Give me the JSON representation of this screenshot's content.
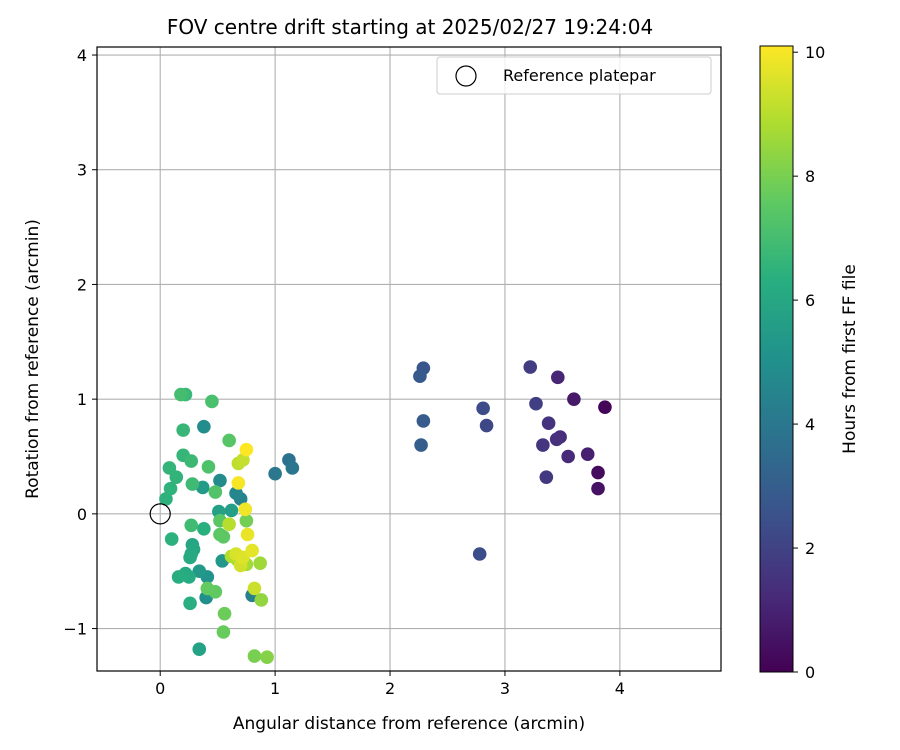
{
  "chart_data": {
    "type": "scatter",
    "title": "FOV centre drift starting at 2025/02/27 19:24:04",
    "xlabel": "Angular distance from reference (arcmin)",
    "ylabel": "Rotation from reference (arcmin)",
    "xlim": [
      -0.55,
      4.88
    ],
    "ylim": [
      -1.37,
      4.07
    ],
    "x_ticks": [
      0,
      1,
      2,
      3,
      4
    ],
    "y_ticks": [
      -1,
      0,
      1,
      2,
      3,
      4
    ],
    "x_tick_labels": [
      "0",
      "1",
      "2",
      "3",
      "4"
    ],
    "y_tick_labels": [
      "−1",
      "0",
      "1",
      "2",
      "3",
      "4"
    ],
    "grid": true,
    "legend": {
      "position": "top-right",
      "label": "Reference platepar"
    },
    "reference_point": {
      "x": 0,
      "y": 0
    },
    "colormap": "viridis",
    "colorbar": {
      "label": "Hours from first FF file",
      "range": [
        0,
        10.1
      ],
      "ticks": [
        0,
        2,
        4,
        6,
        8,
        10
      ],
      "tick_labels": [
        "0",
        "2",
        "4",
        "6",
        "8",
        "10"
      ]
    },
    "points": [
      {
        "x": 3.87,
        "y": 0.93,
        "c": 0.1
      },
      {
        "x": 3.81,
        "y": 0.36,
        "c": 0.3
      },
      {
        "x": 3.81,
        "y": 0.22,
        "c": 0.5
      },
      {
        "x": 3.6,
        "y": 1.0,
        "c": 0.7
      },
      {
        "x": 3.72,
        "y": 0.52,
        "c": 0.9
      },
      {
        "x": 3.46,
        "y": 1.19,
        "c": 1.1
      },
      {
        "x": 3.55,
        "y": 0.5,
        "c": 1.2
      },
      {
        "x": 3.48,
        "y": 0.67,
        "c": 1.3
      },
      {
        "x": 3.45,
        "y": 0.65,
        "c": 1.4
      },
      {
        "x": 3.38,
        "y": 0.79,
        "c": 1.5
      },
      {
        "x": 3.33,
        "y": 0.6,
        "c": 1.6
      },
      {
        "x": 3.36,
        "y": 0.32,
        "c": 1.7
      },
      {
        "x": 3.22,
        "y": 1.28,
        "c": 1.8
      },
      {
        "x": 3.27,
        "y": 0.96,
        "c": 1.9
      },
      {
        "x": 2.84,
        "y": 0.77,
        "c": 2.2
      },
      {
        "x": 2.81,
        "y": 0.92,
        "c": 2.3
      },
      {
        "x": 2.78,
        "y": -0.35,
        "c": 2.4
      },
      {
        "x": 2.29,
        "y": 1.27,
        "c": 2.7
      },
      {
        "x": 2.26,
        "y": 1.2,
        "c": 2.8
      },
      {
        "x": 2.29,
        "y": 0.81,
        "c": 2.9
      },
      {
        "x": 2.27,
        "y": 0.6,
        "c": 3.0
      },
      {
        "x": 1.12,
        "y": 0.47,
        "c": 3.8
      },
      {
        "x": 1.15,
        "y": 0.4,
        "c": 3.9
      },
      {
        "x": 1.0,
        "y": 0.35,
        "c": 4.0
      },
      {
        "x": 0.8,
        "y": -0.71,
        "c": 4.3
      },
      {
        "x": 0.7,
        "y": 0.13,
        "c": 4.5
      },
      {
        "x": 0.66,
        "y": 0.18,
        "c": 4.6
      },
      {
        "x": 0.52,
        "y": 0.29,
        "c": 4.8
      },
      {
        "x": 0.38,
        "y": 0.76,
        "c": 4.9
      },
      {
        "x": 0.4,
        "y": -0.73,
        "c": 5.0
      },
      {
        "x": 0.43,
        "y": -0.68,
        "c": 5.1
      },
      {
        "x": 0.41,
        "y": -0.55,
        "c": 5.2
      },
      {
        "x": 0.54,
        "y": -0.41,
        "c": 5.3
      },
      {
        "x": 0.34,
        "y": -0.5,
        "c": 5.4
      },
      {
        "x": 0.37,
        "y": 0.23,
        "c": 5.5
      },
      {
        "x": 0.62,
        "y": 0.03,
        "c": 5.6
      },
      {
        "x": 0.51,
        "y": 0.02,
        "c": 5.7
      },
      {
        "x": 0.34,
        "y": -1.18,
        "c": 5.8
      },
      {
        "x": 0.28,
        "y": -0.27,
        "c": 5.9
      },
      {
        "x": 0.29,
        "y": -0.31,
        "c": 6.0
      },
      {
        "x": 0.27,
        "y": -0.35,
        "c": 6.05
      },
      {
        "x": 0.26,
        "y": -0.38,
        "c": 6.1
      },
      {
        "x": 0.22,
        "y": -0.52,
        "c": 6.15
      },
      {
        "x": 0.25,
        "y": -0.55,
        "c": 6.2
      },
      {
        "x": 0.16,
        "y": -0.55,
        "c": 6.25
      },
      {
        "x": 0.26,
        "y": -0.78,
        "c": 6.3
      },
      {
        "x": 0.38,
        "y": -0.13,
        "c": 6.35
      },
      {
        "x": 0.1,
        "y": -0.22,
        "c": 6.4
      },
      {
        "x": 0.05,
        "y": 0.13,
        "c": 6.45
      },
      {
        "x": 0.09,
        "y": 0.22,
        "c": 6.5
      },
      {
        "x": 0.14,
        "y": 0.32,
        "c": 6.55
      },
      {
        "x": 0.08,
        "y": 0.4,
        "c": 6.6
      },
      {
        "x": 0.2,
        "y": 0.51,
        "c": 6.65
      },
      {
        "x": 0.2,
        "y": 0.73,
        "c": 6.7
      },
      {
        "x": 0.22,
        "y": 1.04,
        "c": 6.75
      },
      {
        "x": 0.27,
        "y": 0.46,
        "c": 6.8
      },
      {
        "x": 0.28,
        "y": 0.26,
        "c": 6.85
      },
      {
        "x": 0.27,
        "y": -0.1,
        "c": 6.9
      },
      {
        "x": 0.18,
        "y": 1.04,
        "c": 7.0
      },
      {
        "x": 0.45,
        "y": 0.98,
        "c": 7.1
      },
      {
        "x": 0.42,
        "y": 0.41,
        "c": 7.2
      },
      {
        "x": 0.48,
        "y": 0.19,
        "c": 7.3
      },
      {
        "x": 0.6,
        "y": 0.64,
        "c": 7.4
      },
      {
        "x": 0.52,
        "y": -0.06,
        "c": 7.45
      },
      {
        "x": 0.52,
        "y": -0.18,
        "c": 7.5
      },
      {
        "x": 0.55,
        "y": -0.2,
        "c": 7.55
      },
      {
        "x": 0.48,
        "y": -0.68,
        "c": 7.6
      },
      {
        "x": 0.41,
        "y": -0.65,
        "c": 7.65
      },
      {
        "x": 0.55,
        "y": -1.03,
        "c": 7.7
      },
      {
        "x": 0.56,
        "y": -0.87,
        "c": 7.8
      },
      {
        "x": 0.75,
        "y": -0.06,
        "c": 7.9
      },
      {
        "x": 0.82,
        "y": -1.24,
        "c": 8.0
      },
      {
        "x": 0.93,
        "y": -1.25,
        "c": 8.2
      },
      {
        "x": 0.88,
        "y": -0.75,
        "c": 8.4
      },
      {
        "x": 0.87,
        "y": -0.43,
        "c": 8.6
      },
      {
        "x": 0.75,
        "y": -0.44,
        "c": 8.7
      },
      {
        "x": 0.67,
        "y": -0.4,
        "c": 8.8
      },
      {
        "x": 0.62,
        "y": -0.37,
        "c": 8.9
      },
      {
        "x": 0.6,
        "y": -0.09,
        "c": 9.0
      },
      {
        "x": 0.68,
        "y": 0.44,
        "c": 9.1
      },
      {
        "x": 0.72,
        "y": 0.47,
        "c": 9.2
      },
      {
        "x": 0.82,
        "y": -0.65,
        "c": 9.3
      },
      {
        "x": 0.7,
        "y": -0.45,
        "c": 9.4
      },
      {
        "x": 0.66,
        "y": -0.35,
        "c": 9.5
      },
      {
        "x": 0.72,
        "y": -0.38,
        "c": 9.6
      },
      {
        "x": 0.8,
        "y": -0.32,
        "c": 9.7
      },
      {
        "x": 0.76,
        "y": -0.18,
        "c": 9.8
      },
      {
        "x": 0.74,
        "y": 0.04,
        "c": 9.9
      },
      {
        "x": 0.68,
        "y": 0.27,
        "c": 10.0
      },
      {
        "x": 0.75,
        "y": 0.56,
        "c": 10.1
      }
    ]
  }
}
